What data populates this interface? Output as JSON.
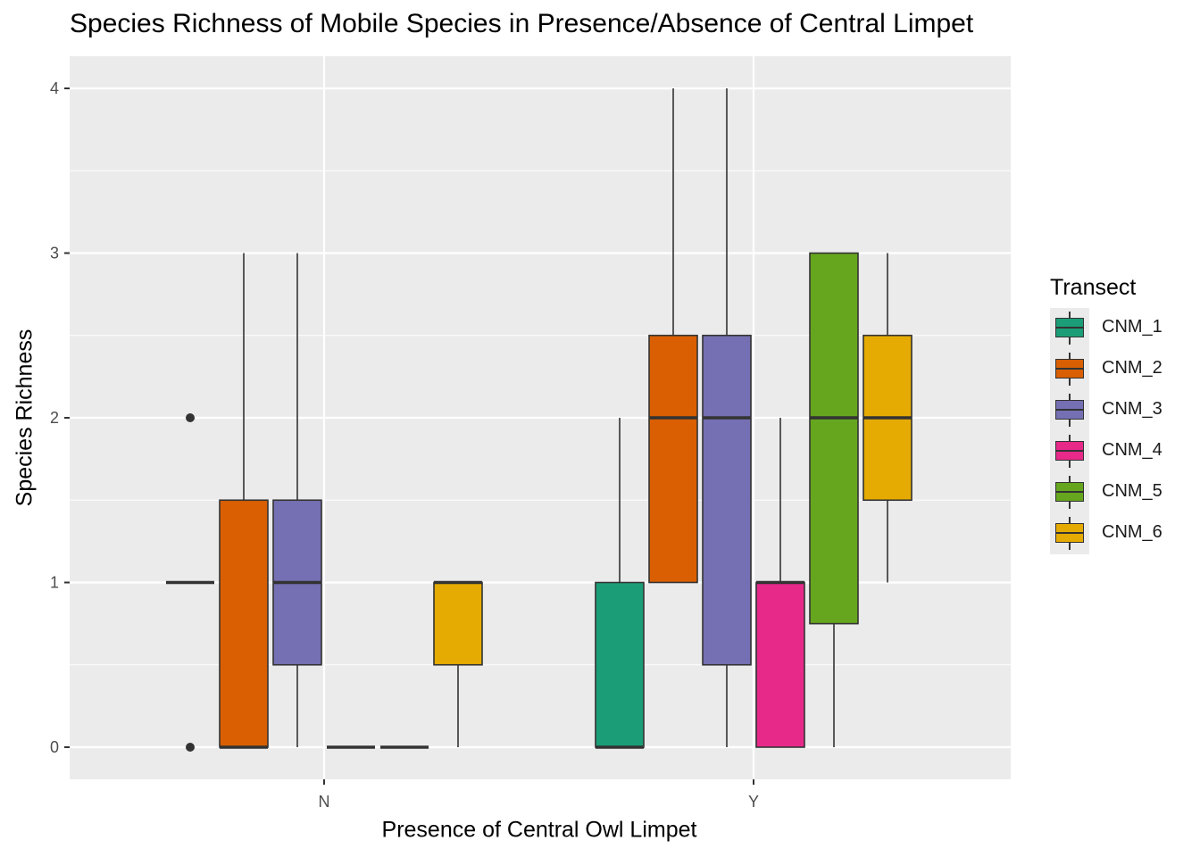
{
  "chart_data": {
    "type": "boxplot",
    "title": "Species Richness of Mobile Species in Presence/Absence of Central Limpet",
    "xlabel": "Presence of Central Owl Limpet",
    "ylabel": "Species Richness",
    "categories": [
      "N",
      "Y"
    ],
    "y_ticks": [
      "0",
      "1",
      "2",
      "3",
      "4"
    ],
    "ylim": [
      -0.2,
      4.2
    ],
    "grid": true,
    "legend": {
      "title": "Transect",
      "position": "right",
      "entries": [
        "CNM_1",
        "CNM_2",
        "CNM_3",
        "CNM_4",
        "CNM_5",
        "CNM_6"
      ]
    },
    "series": [
      {
        "name": "CNM_1",
        "color": "#1B9E77",
        "boxes": [
          {
            "category": "N",
            "min": 1,
            "q1": 1,
            "median": 1,
            "q3": 1,
            "max": 1,
            "outliers": [
              0,
              2
            ]
          },
          {
            "category": "Y",
            "min": 0,
            "q1": 0,
            "median": 0,
            "q3": 1,
            "max": 2,
            "outliers": []
          }
        ]
      },
      {
        "name": "CNM_2",
        "color": "#D95F02",
        "boxes": [
          {
            "category": "N",
            "min": 0,
            "q1": 0,
            "median": 0,
            "q3": 1.5,
            "max": 3,
            "outliers": []
          },
          {
            "category": "Y",
            "min": 1,
            "q1": 1,
            "median": 2,
            "q3": 2.5,
            "max": 4,
            "outliers": []
          }
        ]
      },
      {
        "name": "CNM_3",
        "color": "#7570B3",
        "boxes": [
          {
            "category": "N",
            "min": 0,
            "q1": 0.5,
            "median": 1,
            "q3": 1.5,
            "max": 3,
            "outliers": []
          },
          {
            "category": "Y",
            "min": 0,
            "q1": 0.5,
            "median": 2,
            "q3": 2.5,
            "max": 4,
            "outliers": []
          }
        ]
      },
      {
        "name": "CNM_4",
        "color": "#E7298A",
        "boxes": [
          {
            "category": "N",
            "min": 0,
            "q1": 0,
            "median": 0,
            "q3": 0,
            "max": 0,
            "outliers": []
          },
          {
            "category": "Y",
            "min": 0,
            "q1": 0,
            "median": 1,
            "q3": 1,
            "max": 2,
            "outliers": []
          }
        ]
      },
      {
        "name": "CNM_5",
        "color": "#66A61E",
        "boxes": [
          {
            "category": "N",
            "min": 0,
            "q1": 0,
            "median": 0,
            "q3": 0,
            "max": 0,
            "outliers": []
          },
          {
            "category": "Y",
            "min": 0,
            "q1": 0.75,
            "median": 2,
            "q3": 3,
            "max": 3,
            "outliers": []
          }
        ]
      },
      {
        "name": "CNM_6",
        "color": "#E6AB02",
        "boxes": [
          {
            "category": "N",
            "min": 0,
            "q1": 0.5,
            "median": 1,
            "q3": 1,
            "max": 1,
            "outliers": []
          },
          {
            "category": "Y",
            "min": 1,
            "q1": 1.5,
            "median": 2,
            "q3": 2.5,
            "max": 3,
            "outliers": []
          }
        ]
      }
    ]
  }
}
